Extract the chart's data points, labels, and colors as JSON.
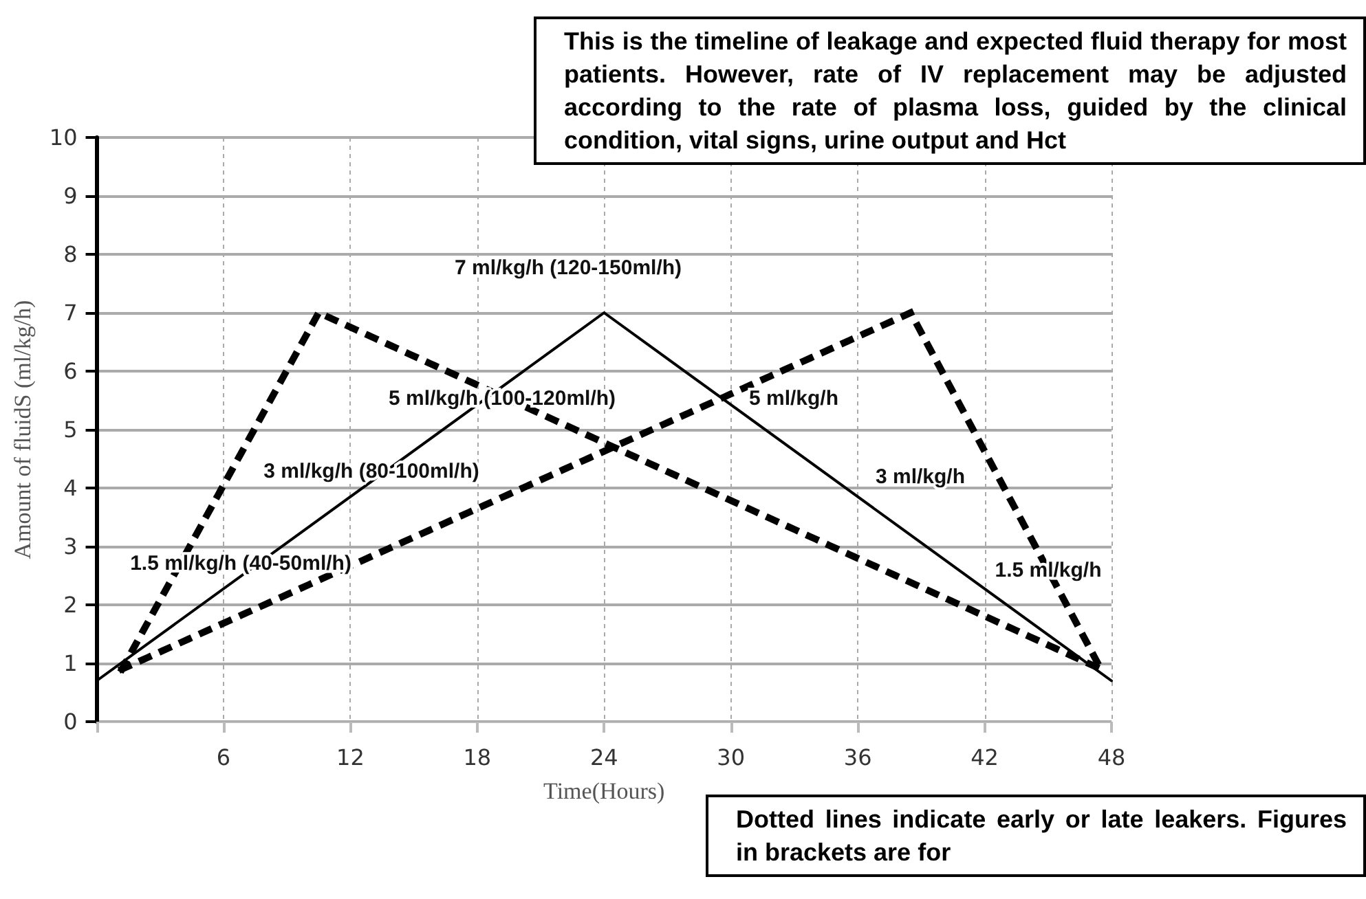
{
  "chart_data": {
    "type": "line",
    "xlabel": "Time(Hours)",
    "ylabel": "Amount of fluidS (ml/kg/h)",
    "xlim": [
      0,
      48
    ],
    "xticks": [
      {
        "value": 0,
        "label": null
      },
      6,
      12,
      18,
      24,
      30,
      36,
      42,
      48
    ],
    "ylim": [
      0,
      10
    ],
    "yticks": [
      0,
      1,
      2,
      3,
      4,
      5,
      6,
      7,
      8,
      9,
      10
    ],
    "grid": true,
    "marker": "none",
    "series": [
      {
        "color": "#000000",
        "line_style": "solid",
        "x": [
          0,
          24,
          48
        ],
        "values": [
          0.7,
          7,
          0.7
        ]
      },
      {
        "color": "#000000",
        "line_style": "dotted",
        "x": [
          1.2,
          10.5,
          47.5
        ],
        "values": [
          0.9,
          7,
          0.9
        ]
      },
      {
        "color": "#000000",
        "line_style": "dotted",
        "x": [
          1.2,
          38.5,
          47.5
        ],
        "values": [
          0.9,
          7,
          0.9
        ]
      }
    ],
    "annotations": [
      "This is the timeline of leakage and expected fluid therapy for most patients. However, rate of IV replacement may be adjusted according to the rate of plasma loss, guided by the clinical condition, vital signs, urine output and Hct",
      "7 ml/kg/h (120-150ml/h)",
      "5 ml/kg/h (100-120ml/h)",
      "5 ml/kg/h",
      "3 ml/kg/h (80-100ml/h)",
      "3 ml/kg/h",
      "1.5 ml/kg/h (40-50ml/h)",
      "1.5 ml/kg/h",
      "Dotted lines indicate early or late leakers. Figures in brackets are for"
    ]
  }
}
